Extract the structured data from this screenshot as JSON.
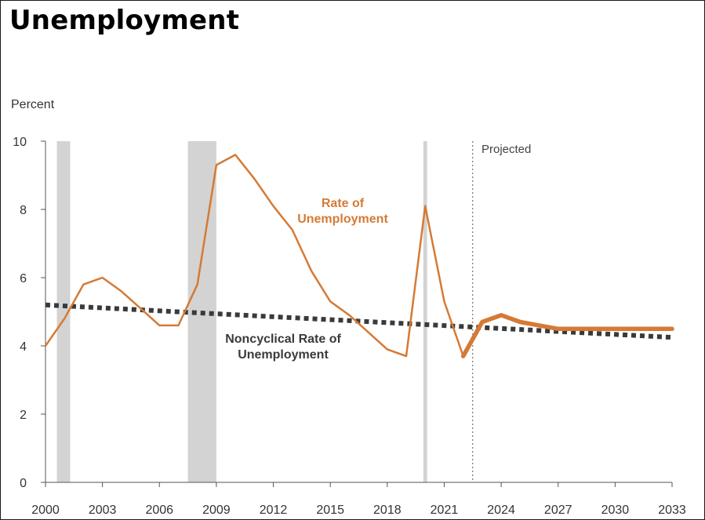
{
  "title": "Unemployment",
  "chart_data": {
    "type": "line",
    "ylabel": "Percent",
    "ylim": [
      0,
      10
    ],
    "xlim": [
      2000,
      2033
    ],
    "y_ticks": [
      0,
      2,
      4,
      6,
      8,
      10
    ],
    "x_ticks": [
      2000,
      2003,
      2006,
      2009,
      2012,
      2015,
      2018,
      2021,
      2024,
      2027,
      2030,
      2033
    ],
    "projected_label": "Projected",
    "projection_start": 2022.5,
    "recessions": [
      {
        "start": 2000.6,
        "end": 2001.3
      },
      {
        "start": 2007.5,
        "end": 2009.0
      },
      {
        "start": 2019.9,
        "end": 2020.1
      }
    ],
    "series": [
      {
        "name": "Rate of Unemployment",
        "label_lines": [
          "Rate of",
          "Unemployment"
        ],
        "color": "#d57a35",
        "x": [
          2000,
          2001,
          2002,
          2003,
          2004,
          2005,
          2006,
          2007,
          2008,
          2009,
          2010,
          2011,
          2012,
          2013,
          2014,
          2015,
          2016,
          2017,
          2018,
          2019,
          2020,
          2021,
          2022,
          2023,
          2024,
          2025,
          2026,
          2027,
          2028,
          2029,
          2030,
          2031,
          2032,
          2033
        ],
        "values": [
          4.0,
          4.8,
          5.8,
          6.0,
          5.6,
          5.1,
          4.6,
          4.6,
          5.8,
          9.3,
          9.6,
          8.9,
          8.1,
          7.4,
          6.2,
          5.3,
          4.9,
          4.4,
          3.9,
          3.7,
          8.1,
          5.3,
          3.7,
          4.7,
          4.9,
          4.7,
          4.6,
          4.5,
          4.5,
          4.5,
          4.5,
          4.5,
          4.5,
          4.5
        ],
        "projected_from": 2023
      },
      {
        "name": "Noncyclical Rate of Unemployment",
        "label_lines": [
          "Noncyclical Rate of",
          "Unemployment"
        ],
        "color": "#3a3a3a",
        "x": [
          2000,
          2033
        ],
        "values": [
          5.2,
          4.25
        ],
        "style": "dotted"
      }
    ],
    "grid": false
  }
}
